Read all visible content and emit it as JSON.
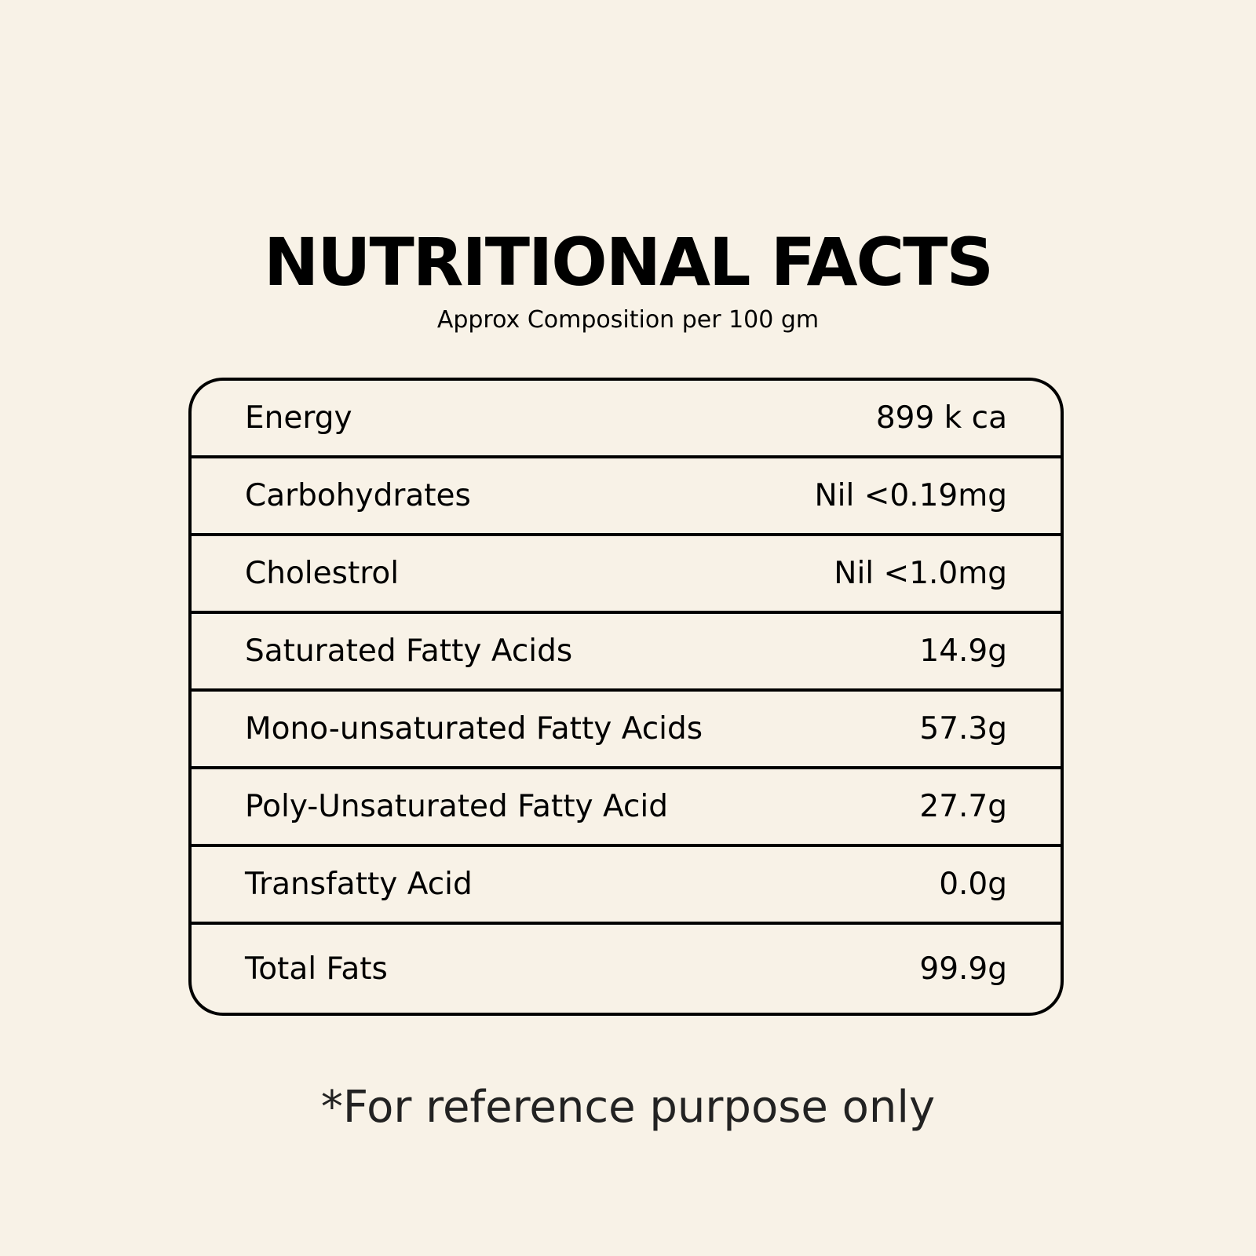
{
  "header": {
    "title": "NUTRITIONAL FACTS",
    "subtitle": "Approx Composition per 100 gm"
  },
  "table": {
    "rows": [
      [
        "Energy",
        "899 k ca"
      ],
      [
        "Carbohydrates",
        "Nil <0.19mg"
      ],
      [
        "Cholestrol",
        "Nil <1.0mg"
      ],
      [
        "Saturated Fatty Acids",
        "14.9g"
      ],
      [
        "Mono-unsaturated Fatty Acids",
        "57.3g"
      ],
      [
        "Poly-Unsaturated Fatty Acid",
        "27.7g"
      ],
      [
        "Transfatty Acid",
        "0.0g"
      ],
      [
        "Total Fats",
        "99.9g"
      ]
    ]
  },
  "footer": {
    "note": "*For reference purpose only"
  }
}
